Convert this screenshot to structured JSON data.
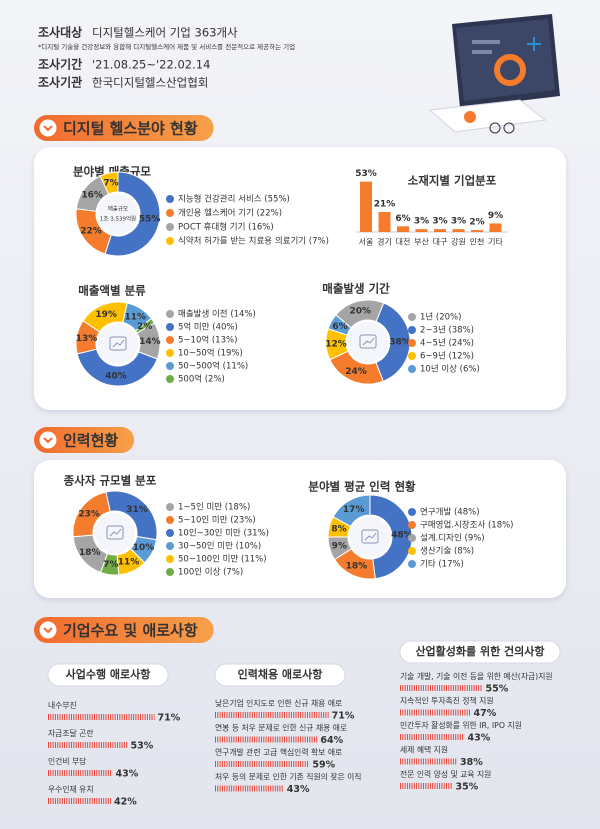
{
  "header": {
    "rows": [
      {
        "label": "조사대상",
        "value": "디지털헬스케어 기업 363개사"
      },
      {
        "label": "조사기간",
        "value": "'21.08.25~'22.02.14"
      },
      {
        "label": "조사기관",
        "value": "한국디지털헬스산업협회"
      }
    ],
    "note": "*디지털 기술을 건강정보와 융합해 디지털헬스케어 제품 및 서비스를 전문적으로 제공하는 기업"
  },
  "sections": [
    {
      "title": "디지털 헬스분야 현황",
      "charts": [
        {
          "type": "donut",
          "title": "분야별 매출규모",
          "center": [
            "매출규모",
            "1조 3,539억원"
          ],
          "categories": [
            "지능형 건강관리 서비스 (55%)",
            "개인용 헬스케어 기기 (22%)",
            "POCT 휴대형 기기 (16%)",
            "식약처 허가를 받는 치료용 의료기기 (7%)"
          ],
          "values": [
            55,
            22,
            16,
            7
          ],
          "value_labels": [
            "55%",
            "22%",
            "16%",
            "7%"
          ],
          "colors": [
            "#4472c4",
            "#f47c2c",
            "#a5a5a5",
            "#ffc000"
          ]
        },
        {
          "type": "bar",
          "title": "소재지별 기업분포",
          "categories": [
            "서울",
            "경기",
            "대전",
            "부산",
            "대구",
            "강원",
            "인천",
            "기타"
          ],
          "values": [
            53,
            21,
            6,
            3,
            3,
            3,
            2,
            9
          ],
          "value_labels": [
            "53%",
            "21%",
            "6%",
            "3%",
            "3%",
            "3%",
            "2%",
            "9%"
          ],
          "color": "#f47c2c"
        },
        {
          "type": "donut",
          "title": "매출액별 분류",
          "categories": [
            "매출발생 이전 (14%)",
            "5억 미만 (40%)",
            "5~10억 (13%)",
            "10~50억 (19%)",
            "50~500억 (11%)",
            "500억 (2%)"
          ],
          "values": [
            14,
            40,
            13,
            19,
            11,
            2
          ],
          "value_labels": [
            "14%",
            "40%",
            "13%",
            "19%",
            "11%",
            "2%"
          ],
          "colors": [
            "#a5a5a5",
            "#4472c4",
            "#f47c2c",
            "#ffc000",
            "#5b9bd5",
            "#70ad47"
          ]
        },
        {
          "type": "donut",
          "title": "매출발생 기간",
          "categories": [
            "1년 (20%)",
            "2~3년 (38%)",
            "4~5년 (24%)",
            "6~9년 (12%)",
            "10년 이상 (6%)"
          ],
          "values": [
            20,
            38,
            24,
            12,
            6
          ],
          "value_labels": [
            "20%",
            "38%",
            "24%",
            "12%",
            "6%"
          ],
          "colors": [
            "#a5a5a5",
            "#4472c4",
            "#f47c2c",
            "#ffc000",
            "#5b9bd5"
          ]
        }
      ]
    },
    {
      "title": "인력현황",
      "charts": [
        {
          "type": "donut",
          "title": "종사자 규모별 분포",
          "categories": [
            "1~5인 미만 (18%)",
            "5~10인 미만 (23%)",
            "10인~30인 미만 (31%)",
            "30~50인 미만 (10%)",
            "50~100인 미만 (11%)",
            "100인 이상 (7%)"
          ],
          "values": [
            18,
            23,
            31,
            10,
            11,
            7
          ],
          "value_labels": [
            "18%",
            "23%",
            "31%",
            "10%",
            "11%",
            "7%"
          ],
          "colors": [
            "#a5a5a5",
            "#f47c2c",
            "#4472c4",
            "#5b9bd5",
            "#ffc000",
            "#70ad47"
          ]
        },
        {
          "type": "donut",
          "title": "분야별 평균 인력 현황",
          "categories": [
            "연구개발 (48%)",
            "구매영업.시장조사 (18%)",
            "설계.디자인 (9%)",
            "생산기술 (8%)",
            "기타 (17%)"
          ],
          "values": [
            48,
            18,
            9,
            8,
            17
          ],
          "value_labels": [
            "48%",
            "18%",
            "9%",
            "8%",
            "17%"
          ],
          "colors": [
            "#4472c4",
            "#f47c2c",
            "#a5a5a5",
            "#ffc000",
            "#5b9bd5"
          ]
        }
      ]
    },
    {
      "title": "기업수요 및 애로사항",
      "charts": [
        {
          "type": "dotbar",
          "title": "사업수행 애로사항",
          "categories": [
            "내수부진",
            "자금조달 곤란",
            "인건비 부담",
            "우수인재 유치"
          ],
          "values": [
            71,
            53,
            43,
            42
          ],
          "value_labels": [
            "71%",
            "53%",
            "43%",
            "42%"
          ],
          "color": "#e8463a"
        },
        {
          "type": "dotbar",
          "title": "인력채용 애로사항",
          "categories": [
            "낮은기업 인지도로 인한 신규 채용 애로",
            "연봉 등 처우 문제로 인한 신규 채용 애로",
            "연구개발 관련 고급 핵심인력 확보 애로",
            "처우 등의 문제로 인한 기존 직원의 잦은 이직"
          ],
          "values": [
            71,
            64,
            59,
            43
          ],
          "value_labels": [
            "71%",
            "64%",
            "59%",
            "43%"
          ],
          "color": "#e8463a"
        },
        {
          "type": "dotbar",
          "title": "산업활성화를 위한 건의사항",
          "categories": [
            "기술 개발, 기술 이전 등을 위한 예산(자금)지원",
            "지속적인 투자촉진 정책 지원",
            "민간투자 활성화를 위한 IR, IPO 지원",
            "세제 혜택 지원",
            "전문 인력 양성 및 교육 지원"
          ],
          "values": [
            55,
            47,
            43,
            38,
            35
          ],
          "value_labels": [
            "55%",
            "47%",
            "43%",
            "38%",
            "35%"
          ],
          "color": "#e8463a"
        }
      ]
    }
  ]
}
